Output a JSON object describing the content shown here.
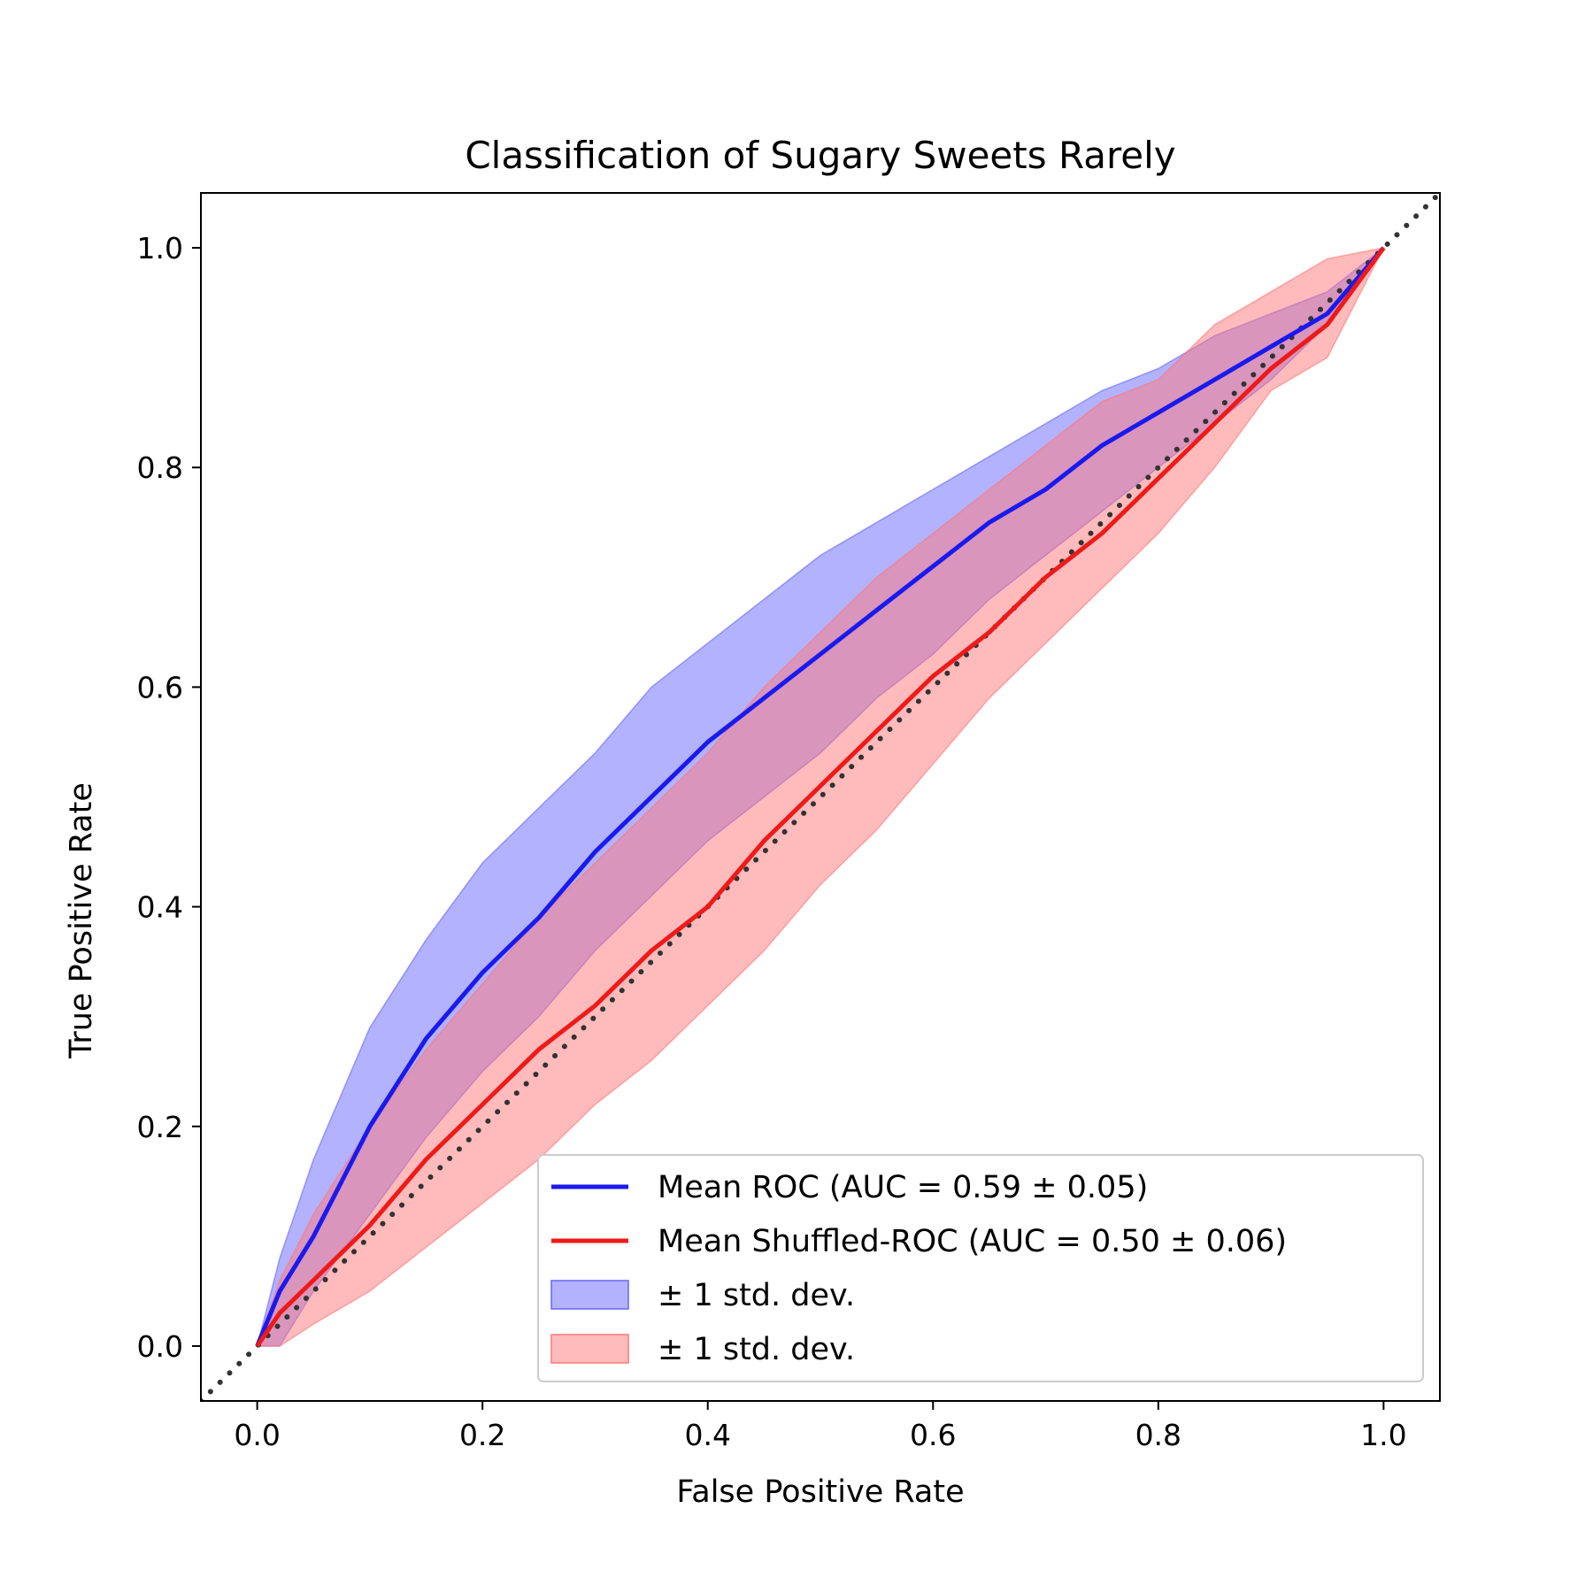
{
  "chart_data": {
    "type": "line",
    "title": "Classification of Sugary Sweets Rarely",
    "xlabel": "False Positive Rate",
    "ylabel": "True Positive Rate",
    "xlim": [
      -0.05,
      1.05
    ],
    "ylim": [
      -0.05,
      1.05
    ],
    "xticks": [
      "0.0",
      "0.2",
      "0.4",
      "0.6",
      "0.8",
      "1.0"
    ],
    "yticks": [
      "0.0",
      "0.2",
      "0.4",
      "0.6",
      "0.8",
      "1.0"
    ],
    "grid": false,
    "legend_position": "lower-right",
    "x": [
      0.0,
      0.02,
      0.05,
      0.1,
      0.15,
      0.2,
      0.25,
      0.3,
      0.35,
      0.4,
      0.45,
      0.5,
      0.55,
      0.6,
      0.65,
      0.7,
      0.75,
      0.8,
      0.85,
      0.9,
      0.95,
      1.0
    ],
    "series": [
      {
        "name": "Mean ROC (AUC = 0.59 ± 0.05)",
        "color": "#1a1aee",
        "values": [
          0.0,
          0.05,
          0.1,
          0.2,
          0.28,
          0.34,
          0.39,
          0.45,
          0.5,
          0.55,
          0.59,
          0.63,
          0.67,
          0.71,
          0.75,
          0.78,
          0.82,
          0.85,
          0.88,
          0.91,
          0.94,
          1.0
        ],
        "band_lower": [
          0.0,
          0.0,
          0.05,
          0.12,
          0.19,
          0.25,
          0.3,
          0.36,
          0.41,
          0.46,
          0.5,
          0.54,
          0.59,
          0.63,
          0.68,
          0.72,
          0.76,
          0.8,
          0.84,
          0.88,
          0.93,
          1.0
        ],
        "band_upper": [
          0.0,
          0.08,
          0.17,
          0.29,
          0.37,
          0.44,
          0.49,
          0.54,
          0.6,
          0.64,
          0.68,
          0.72,
          0.75,
          0.78,
          0.81,
          0.84,
          0.87,
          0.89,
          0.92,
          0.94,
          0.96,
          1.0
        ],
        "band_name": "± 1 std. dev.",
        "band_color": "#6666ff"
      },
      {
        "name": "Mean Shuffled-ROC (AUC = 0.50 ± 0.06)",
        "color": "#ee1a1a",
        "values": [
          0.0,
          0.03,
          0.06,
          0.11,
          0.17,
          0.22,
          0.27,
          0.31,
          0.36,
          0.4,
          0.46,
          0.51,
          0.56,
          0.61,
          0.65,
          0.7,
          0.74,
          0.79,
          0.84,
          0.89,
          0.93,
          1.0
        ],
        "band_lower": [
          0.0,
          0.0,
          0.02,
          0.05,
          0.09,
          0.13,
          0.17,
          0.22,
          0.26,
          0.31,
          0.36,
          0.42,
          0.47,
          0.53,
          0.59,
          0.64,
          0.69,
          0.74,
          0.8,
          0.87,
          0.9,
          1.0
        ],
        "band_upper": [
          0.0,
          0.06,
          0.12,
          0.2,
          0.27,
          0.33,
          0.39,
          0.44,
          0.49,
          0.54,
          0.6,
          0.65,
          0.7,
          0.74,
          0.78,
          0.82,
          0.86,
          0.88,
          0.93,
          0.96,
          0.99,
          1.0
        ],
        "band_name": "± 1 std. dev.",
        "band_color": "#ff7777"
      }
    ],
    "reference_line": {
      "x": [
        -0.05,
        1.05
      ],
      "y": [
        -0.05,
        1.05
      ],
      "color": "#333333",
      "style": "dotted"
    }
  }
}
